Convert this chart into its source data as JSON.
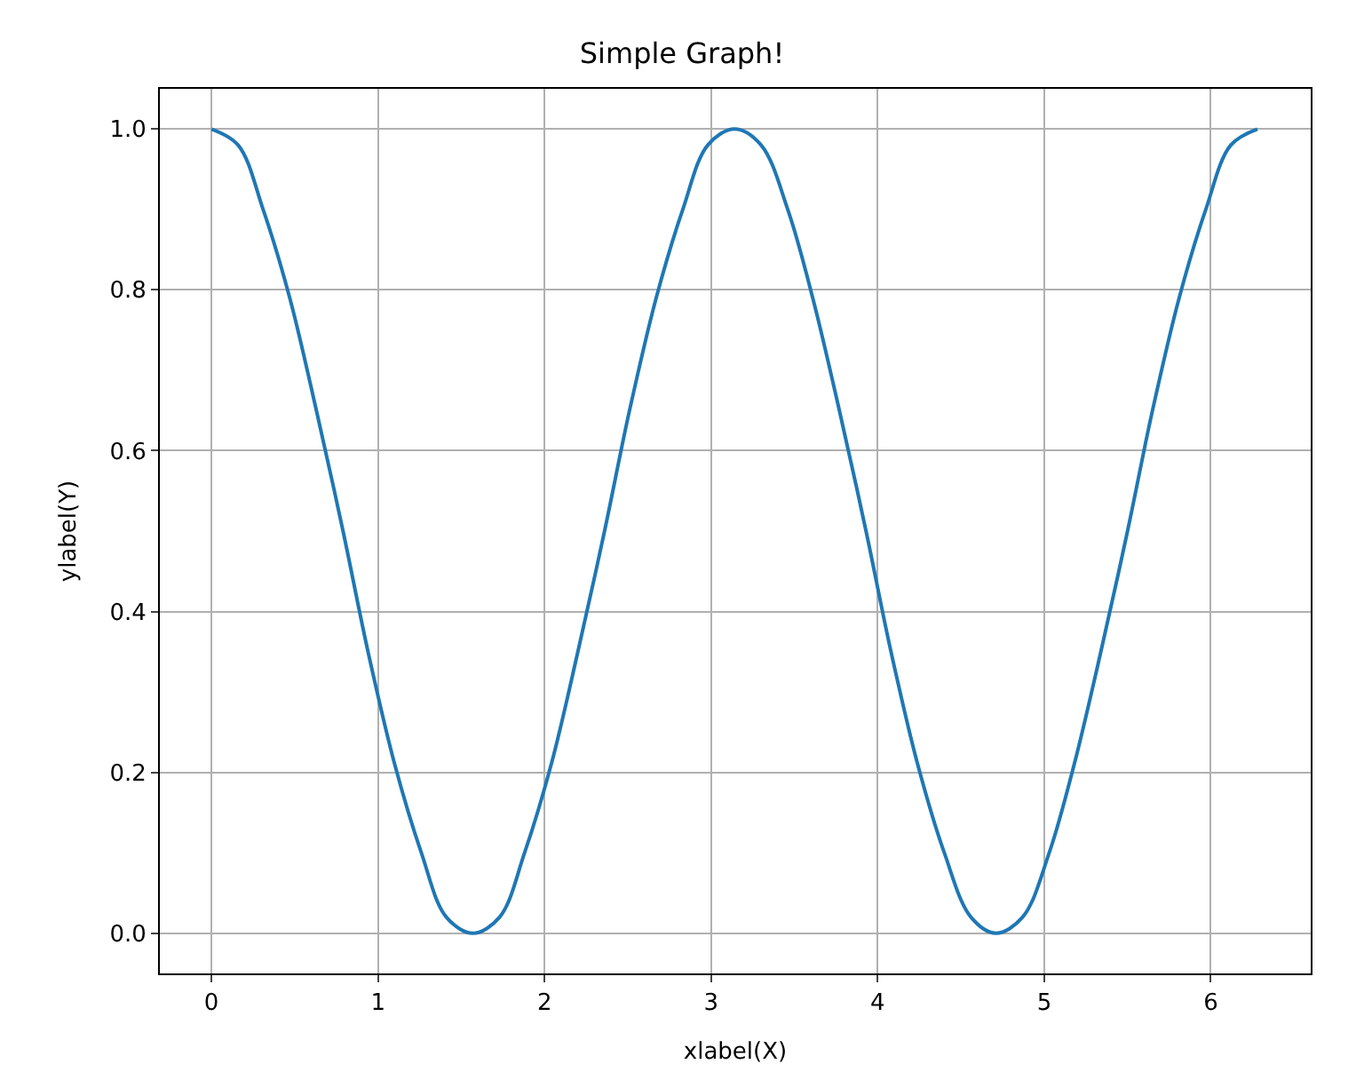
{
  "chart_data": {
    "type": "line",
    "title": "Simple Graph!",
    "xlabel": "xlabel(X)",
    "ylabel": "ylabel(Y)",
    "x": [
      0,
      0.16,
      0.31,
      0.47,
      0.63,
      0.79,
      0.94,
      1.1,
      1.26,
      1.41,
      1.57,
      1.73,
      1.88,
      2.04,
      2.2,
      2.36,
      2.51,
      2.67,
      2.83,
      2.98,
      3.14,
      3.3,
      3.46,
      3.61,
      3.77,
      3.93,
      4.08,
      4.24,
      4.4,
      4.56,
      4.71,
      4.87,
      5.03,
      5.18,
      5.34,
      5.5,
      5.65,
      5.81,
      5.97,
      6.12,
      6.28
    ],
    "series": [
      {
        "color": "#1f77b4",
        "values": [
          1,
          0.98,
          0.9,
          0.79,
          0.65,
          0.5,
          0.35,
          0.21,
          0.1,
          0.02,
          0,
          0.02,
          0.1,
          0.21,
          0.35,
          0.5,
          0.65,
          0.79,
          0.9,
          0.98,
          1,
          0.98,
          0.9,
          0.79,
          0.65,
          0.5,
          0.35,
          0.21,
          0.1,
          0.02,
          0,
          0.02,
          0.1,
          0.21,
          0.35,
          0.5,
          0.65,
          0.79,
          0.9,
          0.98,
          1
        ]
      }
    ],
    "xlim": [
      -0.31,
      6.6
    ],
    "ylim": [
      -0.05,
      1.05
    ],
    "xticks": [
      0,
      1,
      2,
      3,
      4,
      5,
      6
    ],
    "yticks": [
      {
        "value": 0,
        "label": "0.0"
      },
      {
        "value": 0.2,
        "label": "0.2"
      },
      {
        "value": 0.4,
        "label": "0.4"
      },
      {
        "value": 0.6,
        "label": "0.6"
      },
      {
        "value": 0.8,
        "label": "0.8"
      },
      {
        "value": 1,
        "label": "1.0"
      }
    ],
    "grid": true
  }
}
